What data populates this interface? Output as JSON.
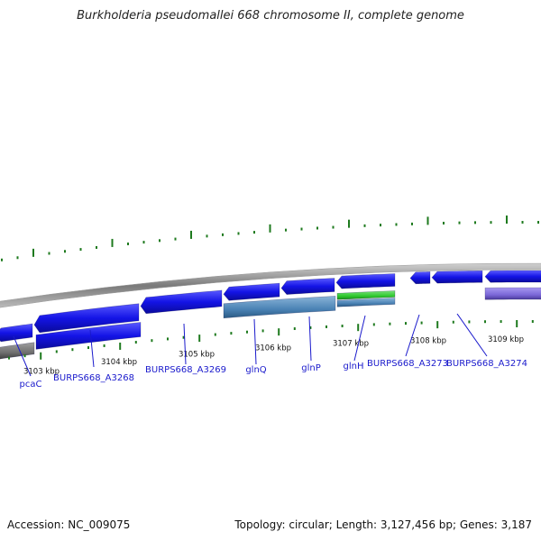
{
  "title": "Burkholderia pseudomallei 668 chromosome II, complete genome",
  "accession": "Accession: NC_009075",
  "topology": "Topology: circular; Length: 3,127,456 bp; Genes: 3,187",
  "colors": {
    "backbone": "#8c8c8c",
    "gene_forward": "#1414e6",
    "gene_reverse": "#1414e6",
    "cds_blue": "#4a82b4",
    "rna_green": "#2ec82e",
    "cds_purple": "#7b68d8",
    "cds_gray": "#6e6e6e",
    "tick": "#1e7a1e",
    "label": "#1a1acc",
    "label_line": "#1a1acc"
  },
  "ticks": [
    "3103 kbp",
    "3104 kbp",
    "3105 kbp",
    "3106 kbp",
    "3107 kbp",
    "3108 kbp",
    "3109 kbp"
  ],
  "gene_labels": [
    "pcaC",
    "BURPS668_A3268",
    "BURPS668_A3269",
    "glnQ",
    "glnP",
    "glnH",
    "BURPS668_A3273",
    "BURPS668_A3274"
  ]
}
